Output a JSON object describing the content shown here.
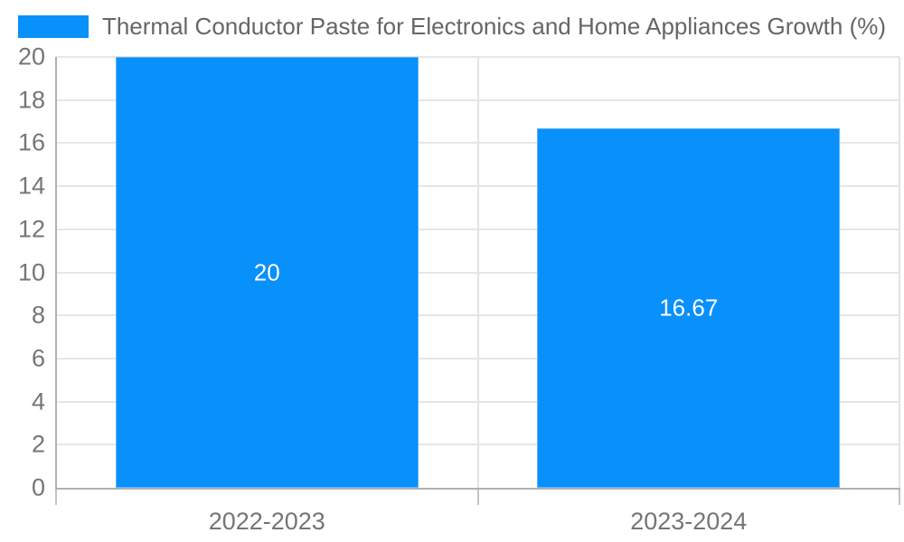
{
  "chart_data": {
    "type": "bar",
    "title": "Thermal Conductor Paste for Electronics and Home Appliances Growth (%)",
    "categories": [
      "2022-2023",
      "2023-2024"
    ],
    "values": [
      20,
      16.67
    ],
    "data_labels": [
      "20",
      "16.67"
    ],
    "yticks": [
      0,
      2,
      4,
      6,
      8,
      10,
      12,
      14,
      16,
      18,
      20
    ],
    "ylim": [
      0,
      20
    ],
    "xlabel": "",
    "ylabel": "",
    "grid": "on",
    "legend_position": "top",
    "colors": {
      "bar_fill": "#0890fb",
      "bar_border": "#5fb4fd",
      "gridline": "#e6e6e6",
      "axis_line": "#b0b0b0",
      "tick_text": "#757575",
      "legend_text": "#666666",
      "data_label_text": "#ffffff"
    }
  }
}
